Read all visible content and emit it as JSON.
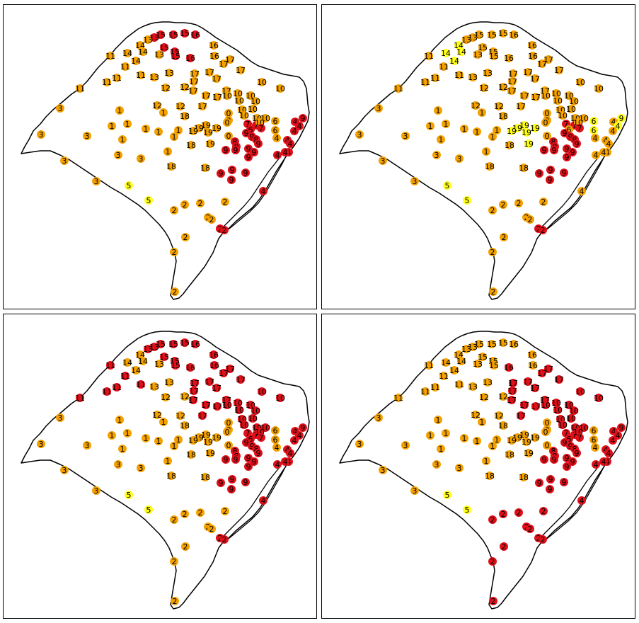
{
  "colors": {
    "orange": "#f4a100",
    "red": "#e0101a",
    "yellow": "#ffff1a"
  },
  "stations": [
    {
      "id": "s01",
      "label": "16",
      "lon": 271,
      "lat": 42
    },
    {
      "id": "s02",
      "label": "15",
      "lon": 256,
      "lat": 40
    },
    {
      "id": "s03",
      "label": "15",
      "lon": 240,
      "lat": 42
    },
    {
      "id": "s04",
      "label": "15",
      "lon": 222,
      "lat": 42
    },
    {
      "id": "s05",
      "label": "13",
      "lon": 213,
      "lat": 46
    },
    {
      "id": "s06",
      "label": "13",
      "lon": 204,
      "lat": 49
    },
    {
      "id": "s07",
      "label": "14",
      "lon": 193,
      "lat": 57
    },
    {
      "id": "s08",
      "label": "15",
      "lon": 227,
      "lat": 60
    },
    {
      "id": "s09",
      "label": "14",
      "lon": 175,
      "lat": 68
    },
    {
      "id": "s10",
      "label": "14",
      "lon": 197,
      "lat": 66
    },
    {
      "id": "s11",
      "label": "13",
      "lon": 220,
      "lat": 70
    },
    {
      "id": "s12",
      "label": "15",
      "lon": 242,
      "lat": 66
    },
    {
      "id": "s13",
      "label": "15",
      "lon": 243,
      "lat": 72
    },
    {
      "id": "s14",
      "label": "16",
      "lon": 264,
      "lat": 75
    },
    {
      "id": "s15",
      "label": "16",
      "lon": 297,
      "lat": 57
    },
    {
      "id": "s16",
      "label": "16",
      "lon": 298,
      "lat": 72
    },
    {
      "id": "s17",
      "label": "17",
      "lon": 320,
      "lat": 77
    },
    {
      "id": "s18",
      "label": "17",
      "lon": 311,
      "lat": 83
    },
    {
      "id": "s19",
      "label": "11",
      "lon": 151,
      "lat": 72
    },
    {
      "id": "s20",
      "label": "14",
      "lon": 187,
      "lat": 79
    },
    {
      "id": "s21",
      "label": "11",
      "lon": 172,
      "lat": 87
    },
    {
      "id": "s22",
      "label": "11",
      "lon": 194,
      "lat": 99
    },
    {
      "id": "s23",
      "label": "13",
      "lon": 213,
      "lat": 102
    },
    {
      "id": "s24",
      "label": "13",
      "lon": 234,
      "lat": 96
    },
    {
      "id": "s25",
      "label": "17",
      "lon": 270,
      "lat": 97
    },
    {
      "id": "s26",
      "label": "17",
      "lon": 291,
      "lat": 95
    },
    {
      "id": "s27",
      "label": "17",
      "lon": 301,
      "lat": 104
    },
    {
      "id": "s28",
      "label": "17",
      "lon": 335,
      "lat": 92
    },
    {
      "id": "s29",
      "label": "11",
      "lon": 160,
      "lat": 103
    },
    {
      "id": "s30",
      "label": "11",
      "lon": 146,
      "lat": 109
    },
    {
      "id": "s31",
      "label": "12",
      "lon": 229,
      "lat": 117
    },
    {
      "id": "s32",
      "label": "17",
      "lon": 269,
      "lat": 108
    },
    {
      "id": "s33",
      "label": "12",
      "lon": 256,
      "lat": 116
    },
    {
      "id": "s34",
      "label": "17",
      "lon": 268,
      "lat": 121
    },
    {
      "id": "s35",
      "label": "17",
      "lon": 315,
      "lat": 121
    },
    {
      "id": "s36",
      "label": "10",
      "lon": 365,
      "lat": 109
    },
    {
      "id": "s37",
      "label": "10",
      "lon": 391,
      "lat": 118
    },
    {
      "id": "s38",
      "label": "11",
      "lon": 108,
      "lat": 118
    },
    {
      "id": "s39",
      "label": "17",
      "lon": 286,
      "lat": 128
    },
    {
      "id": "s40",
      "label": "17",
      "lon": 302,
      "lat": 130
    },
    {
      "id": "s41",
      "label": "10",
      "lon": 316,
      "lat": 128
    },
    {
      "id": "s42",
      "label": "10",
      "lon": 331,
      "lat": 125
    },
    {
      "id": "s43",
      "label": "10",
      "lon": 349,
      "lat": 128
    },
    {
      "id": "s44",
      "label": "10",
      "lon": 333,
      "lat": 135
    },
    {
      "id": "s45",
      "label": "10",
      "lon": 356,
      "lat": 136
    },
    {
      "id": "s46",
      "label": "17",
      "lon": 281,
      "lat": 143
    },
    {
      "id": "s47",
      "label": "3",
      "lon": 80,
      "lat": 146
    },
    {
      "id": "s48",
      "label": "12",
      "lon": 217,
      "lat": 142
    },
    {
      "id": "s49",
      "label": "12",
      "lon": 250,
      "lat": 143
    },
    {
      "id": "s50",
      "label": "10",
      "lon": 352,
      "lat": 147
    },
    {
      "id": "s51",
      "label": "10",
      "lon": 337,
      "lat": 148
    },
    {
      "id": "s52",
      "label": "1",
      "lon": 164,
      "lat": 149
    },
    {
      "id": "s53",
      "label": "1",
      "lon": 226,
      "lat": 152
    },
    {
      "id": "s54",
      "label": "18",
      "lon": 256,
      "lat": 157
    },
    {
      "id": "s55",
      "label": "0",
      "lon": 318,
      "lat": 153
    },
    {
      "id": "s56",
      "label": "10",
      "lon": 340,
      "lat": 156
    },
    {
      "id": "s57",
      "label": "10",
      "lon": 358,
      "lat": 160
    },
    {
      "id": "s58",
      "label": "10",
      "lon": 370,
      "lat": 160
    },
    {
      "id": "s59",
      "label": "6",
      "lon": 384,
      "lat": 164
    },
    {
      "id": "s60",
      "label": "1",
      "lon": 175,
      "lat": 168
    },
    {
      "id": "s61",
      "label": "0",
      "lon": 318,
      "lat": 163
    },
    {
      "id": "s62",
      "label": "0",
      "lon": 316,
      "lat": 166
    },
    {
      "id": "s63",
      "label": "7",
      "lon": 345,
      "lat": 168
    },
    {
      "id": "s64",
      "label": "7",
      "lon": 357,
      "lat": 170
    },
    {
      "id": "s65",
      "label": "10",
      "lon": 362,
      "lat": 166
    },
    {
      "id": "s66",
      "label": "7",
      "lon": 364,
      "lat": 174
    },
    {
      "id": "s67",
      "label": "9",
      "lon": 423,
      "lat": 160
    },
    {
      "id": "s68",
      "label": "4",
      "lon": 412,
      "lat": 165
    },
    {
      "id": "s69",
      "label": "1",
      "lon": 153,
      "lat": 171
    },
    {
      "id": "s70",
      "label": "1",
      "lon": 201,
      "lat": 175
    },
    {
      "id": "s71",
      "label": "1",
      "lon": 219,
      "lat": 179
    },
    {
      "id": "s72",
      "label": "1",
      "lon": 247,
      "lat": 177
    },
    {
      "id": "s73",
      "label": "19",
      "lon": 286,
      "lat": 170
    },
    {
      "id": "s74",
      "label": "19",
      "lon": 276,
      "lat": 174
    },
    {
      "id": "s75",
      "label": "19",
      "lon": 301,
      "lat": 174
    },
    {
      "id": "s76",
      "label": "19",
      "lon": 268,
      "lat": 178
    },
    {
      "id": "s77",
      "label": "19",
      "lon": 289,
      "lat": 180
    },
    {
      "id": "s78",
      "label": "6",
      "lon": 349,
      "lat": 176
    },
    {
      "id": "s79",
      "label": "6",
      "lon": 384,
      "lat": 177
    },
    {
      "id": "s80",
      "label": "4",
      "lon": 418,
      "lat": 171
    },
    {
      "id": "s81",
      "label": "4",
      "lon": 411,
      "lat": 178
    },
    {
      "id": "s82",
      "label": "3",
      "lon": 53,
      "lat": 183
    },
    {
      "id": "s83",
      "label": "3",
      "lon": 118,
      "lat": 185
    },
    {
      "id": "s84",
      "label": "1",
      "lon": 168,
      "lat": 190
    },
    {
      "id": "s85",
      "label": "1",
      "lon": 241,
      "lat": 186
    },
    {
      "id": "s86",
      "label": "0",
      "lon": 318,
      "lat": 185
    },
    {
      "id": "s87",
      "label": "9",
      "lon": 343,
      "lat": 181
    },
    {
      "id": "s88",
      "label": "9",
      "lon": 351,
      "lat": 186
    },
    {
      "id": "s89",
      "label": "8",
      "lon": 357,
      "lat": 190
    },
    {
      "id": "s90",
      "label": "4",
      "lon": 386,
      "lat": 188
    },
    {
      "id": "s91",
      "label": "4",
      "lon": 401,
      "lat": 191
    },
    {
      "id": "s92",
      "label": "18",
      "lon": 265,
      "lat": 198
    },
    {
      "id": "s93",
      "label": "19",
      "lon": 292,
      "lat": 196
    },
    {
      "id": "s94",
      "label": "8",
      "lon": 327,
      "lat": 193
    },
    {
      "id": "s95",
      "label": "8",
      "lon": 329,
      "lat": 200
    },
    {
      "id": "s96",
      "label": "9",
      "lon": 360,
      "lat": 196
    },
    {
      "id": "s97",
      "label": "4",
      "lon": 405,
      "lat": 196
    },
    {
      "id": "s98",
      "label": "9",
      "lon": 314,
      "lat": 205
    },
    {
      "id": "s99",
      "label": "9",
      "lon": 328,
      "lat": 205
    },
    {
      "id": "s100",
      "label": "9",
      "lon": 346,
      "lat": 203
    },
    {
      "id": "s101",
      "label": "1",
      "lon": 232,
      "lat": 207
    },
    {
      "id": "s102",
      "label": "3",
      "lon": 162,
      "lat": 212
    },
    {
      "id": "s103",
      "label": "9",
      "lon": 354,
      "lat": 208
    },
    {
      "id": "s104",
      "label": "4",
      "lon": 403,
      "lat": 208
    },
    {
      "id": "s105",
      "label": "3",
      "lon": 86,
      "lat": 220
    },
    {
      "id": "s106",
      "label": "3",
      "lon": 194,
      "lat": 217
    },
    {
      "id": "s107",
      "label": "9",
      "lon": 346,
      "lat": 215
    },
    {
      "id": "s108",
      "label": "4",
      "lon": 387,
      "lat": 212
    },
    {
      "id": "s109",
      "label": "4",
      "lon": 398,
      "lat": 208
    },
    {
      "id": "s110",
      "label": "18",
      "lon": 237,
      "lat": 228
    },
    {
      "id": "s111",
      "label": "18",
      "lon": 285,
      "lat": 230
    },
    {
      "id": "s112",
      "label": "9",
      "lon": 323,
      "lat": 233
    },
    {
      "id": "s113",
      "label": "9",
      "lon": 307,
      "lat": 238
    },
    {
      "id": "s114",
      "label": "9",
      "lon": 342,
      "lat": 237
    },
    {
      "id": "s115",
      "label": "9",
      "lon": 322,
      "lat": 247
    },
    {
      "id": "s116",
      "label": "3",
      "lon": 131,
      "lat": 249
    },
    {
      "id": "s117",
      "label": "5",
      "lon": 177,
      "lat": 255
    },
    {
      "id": "s118",
      "label": "4",
      "lon": 367,
      "lat": 263
    },
    {
      "id": "s119",
      "label": "5",
      "lon": 205,
      "lat": 276
    },
    {
      "id": "s120",
      "label": "2",
      "lon": 278,
      "lat": 280
    },
    {
      "id": "s121",
      "label": "2",
      "lon": 256,
      "lat": 282
    },
    {
      "id": "s122",
      "label": "2",
      "lon": 313,
      "lat": 278
    },
    {
      "id": "s123",
      "label": "2",
      "lon": 241,
      "lat": 290
    },
    {
      "id": "s124",
      "label": "2",
      "lon": 289,
      "lat": 300
    },
    {
      "id": "s125",
      "label": "2",
      "lon": 294,
      "lat": 303
    },
    {
      "id": "s126",
      "label": "2",
      "lon": 306,
      "lat": 316
    },
    {
      "id": "s127",
      "label": "2",
      "lon": 312,
      "lat": 318
    },
    {
      "id": "s128",
      "label": "2",
      "lon": 257,
      "lat": 328
    },
    {
      "id": "s129",
      "label": "2",
      "lon": 241,
      "lat": 349
    },
    {
      "id": "s130",
      "label": "2",
      "lon": 242,
      "lat": 405
    }
  ],
  "maps": [
    {
      "id": "map-top-left",
      "default": "orange",
      "red": [
        "s01",
        "s02",
        "s03",
        "s04",
        "s05",
        "s08",
        "s12",
        "s13",
        "s14",
        "s98",
        "s99",
        "s100",
        "s103",
        "s107",
        "s112",
        "s113",
        "s114",
        "s115",
        "s118",
        "s126",
        "s127",
        "s63",
        "s64",
        "s66",
        "s67",
        "s68",
        "s78",
        "s80",
        "s81",
        "s87",
        "s88",
        "s89",
        "s91",
        "s94",
        "s95",
        "s96",
        "s97",
        "s104",
        "s108",
        "s109"
      ],
      "yellow": [
        "s117",
        "s119"
      ]
    },
    {
      "id": "map-top-right",
      "default": "orange",
      "red": [
        "s98",
        "s99",
        "s100",
        "s103",
        "s107",
        "s112",
        "s113",
        "s114",
        "s115",
        "s126",
        "s127",
        "s63",
        "s64",
        "s66",
        "s87",
        "s88",
        "s89",
        "s94",
        "s95",
        "s96"
      ],
      "yellow": [
        "s07",
        "s09",
        "s10",
        "s20",
        "s73",
        "s74",
        "s75",
        "s76",
        "s77",
        "s93",
        "s117",
        "s119",
        "s59",
        "s79",
        "s67",
        "s80"
      ]
    },
    {
      "id": "map-bottom-left",
      "default": "orange",
      "red": [
        "s01",
        "s02",
        "s03",
        "s04",
        "s05",
        "s06",
        "s08",
        "s12",
        "s13",
        "s14",
        "s15",
        "s16",
        "s17",
        "s18",
        "s19",
        "s21",
        "s22",
        "s25",
        "s26",
        "s27",
        "s28",
        "s29",
        "s30",
        "s32",
        "s34",
        "s35",
        "s36",
        "s37",
        "s38",
        "s39",
        "s40",
        "s41",
        "s42",
        "s43",
        "s44",
        "s45",
        "s46",
        "s50",
        "s51",
        "s56",
        "s57",
        "s58",
        "s63",
        "s64",
        "s65",
        "s66",
        "s67",
        "s68",
        "s78",
        "s80",
        "s81",
        "s87",
        "s88",
        "s89",
        "s91",
        "s94",
        "s95",
        "s96",
        "s97",
        "s98",
        "s99",
        "s100",
        "s103",
        "s104",
        "s107",
        "s108",
        "s109",
        "s112",
        "s113",
        "s114",
        "s115",
        "s118",
        "s126",
        "s127"
      ],
      "yellow": [
        "s117",
        "s119"
      ]
    },
    {
      "id": "map-bottom-right",
      "default": "orange",
      "red": [
        "s14",
        "s17",
        "s18",
        "s25",
        "s26",
        "s27",
        "s28",
        "s32",
        "s34",
        "s35",
        "s36",
        "s37",
        "s39",
        "s40",
        "s41",
        "s42",
        "s43",
        "s44",
        "s45",
        "s46",
        "s50",
        "s51",
        "s56",
        "s57",
        "s58",
        "s63",
        "s64",
        "s65",
        "s66",
        "s67",
        "s68",
        "s78",
        "s80",
        "s81",
        "s87",
        "s88",
        "s89",
        "s91",
        "s94",
        "s95",
        "s96",
        "s97",
        "s98",
        "s99",
        "s100",
        "s103",
        "s104",
        "s107",
        "s108",
        "s109",
        "s112",
        "s113",
        "s114",
        "s115",
        "s118",
        "s120",
        "s121",
        "s122",
        "s123",
        "s124",
        "s125",
        "s126",
        "s127",
        "s128",
        "s129",
        "s130"
      ],
      "yellow": [
        "s117",
        "s119"
      ]
    }
  ]
}
